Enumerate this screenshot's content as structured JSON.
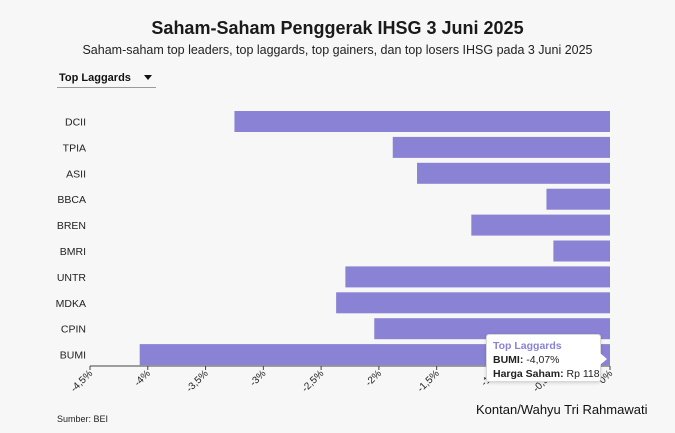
{
  "header": {
    "title": "Saham-Saham Penggerak IHSG 3 Juni 2025",
    "subtitle": "Saham-saham top leaders, top laggards, top gainers, dan top losers IHSG pada 3 Juni 2025"
  },
  "dropdown": {
    "selected": "Top Laggards"
  },
  "tooltip": {
    "title": "Top Laggards",
    "row1_label": "BUMI:",
    "row1_value": "-4,07%",
    "row2_label": "Harga Saham:",
    "row2_value": "Rp 118"
  },
  "footer": {
    "source": "Sumber: BEI",
    "credit": "Kontan/Wahyu Tri Rahmawati"
  },
  "colors": {
    "bar": "#8a82d4",
    "background": "#f7f7f7"
  },
  "chart_data": {
    "type": "bar",
    "orientation": "horizontal",
    "categories": [
      "DCII",
      "TPIA",
      "ASII",
      "BBCA",
      "BREN",
      "BMRI",
      "UNTR",
      "MDKA",
      "CPIN",
      "BUMI"
    ],
    "values": [
      -3.25,
      -1.88,
      -1.67,
      -0.55,
      -1.2,
      -0.49,
      -2.29,
      -2.37,
      -2.04,
      -4.07
    ],
    "xlim": [
      -4.5,
      0
    ],
    "xticks": [
      -4.5,
      -4,
      -3.5,
      -3,
      -2.5,
      -2,
      -1.5,
      -1,
      -0.5,
      0
    ],
    "xtick_labels": [
      "-4,5%",
      "-4%",
      "-3,5%",
      "-3%",
      "-2,5%",
      "-2%",
      "-1,5%",
      "-1%",
      "-0,5%",
      "0%"
    ],
    "grid": false,
    "legend": "none"
  }
}
